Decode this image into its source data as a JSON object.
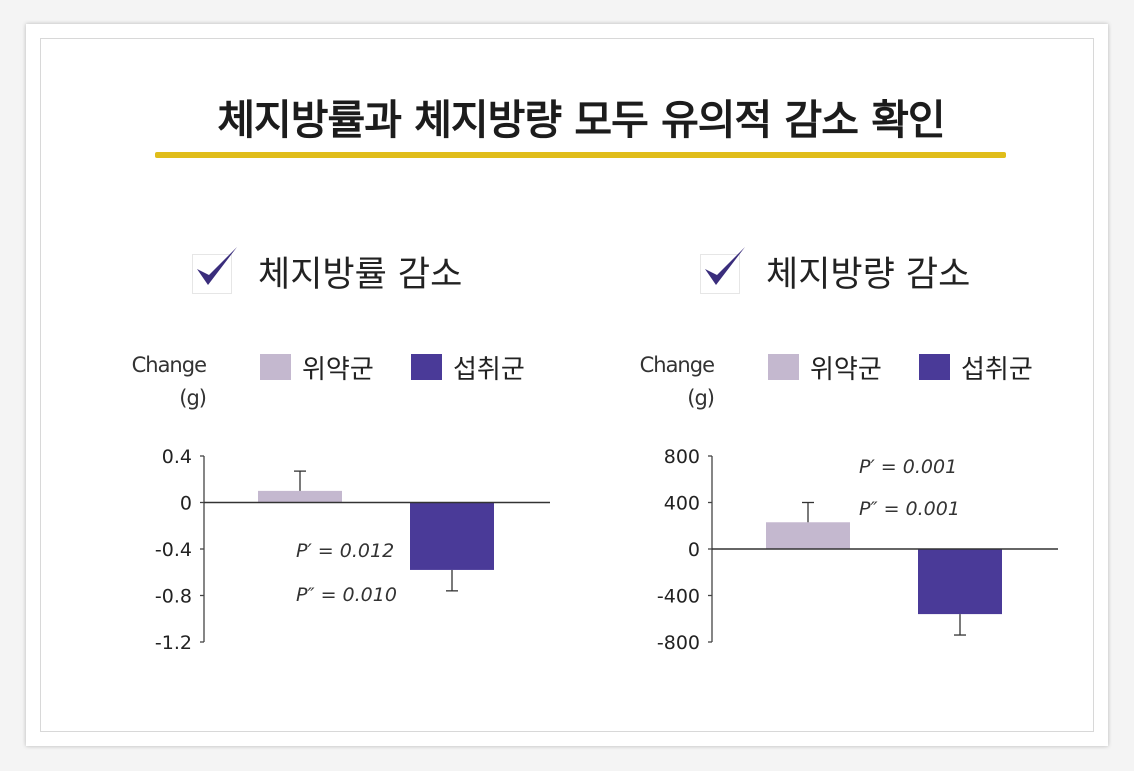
{
  "title": "체지방률과 체지방량 모두 유의적 감소 확인",
  "colors": {
    "placebo": "#c4b8cf",
    "intake": "#4a3a98",
    "underline": "#e0bd1a",
    "check": "#3a2d7c"
  },
  "chart_data": [
    {
      "type": "bar",
      "heading": "체지방률 감소",
      "ylabel": [
        "Change",
        "(g)"
      ],
      "legend": [
        "위약군",
        "섭취군"
      ],
      "categories": [
        "위약군",
        "섭취군"
      ],
      "values": [
        0.1,
        -0.58
      ],
      "error_upper": [
        0.27,
        null
      ],
      "error_lower": [
        null,
        -0.76
      ],
      "ylim": [
        -1.2,
        0.4
      ],
      "yticks": [
        0.4,
        0,
        -0.4,
        -0.8,
        -1.2
      ],
      "ytick_labels": [
        "0.4",
        "0",
        "-0.4",
        "-0.8",
        "-1.2"
      ],
      "annotations": [
        "P′ = 0.012",
        "P″ = 0.010"
      ]
    },
    {
      "type": "bar",
      "heading": "체지방량 감소",
      "ylabel": [
        "Change",
        "(g)"
      ],
      "legend": [
        "위약군",
        "섭취군"
      ],
      "categories": [
        "위약군",
        "섭취군"
      ],
      "values": [
        230,
        -560
      ],
      "error_upper": [
        400,
        null
      ],
      "error_lower": [
        null,
        -740
      ],
      "ylim": [
        -800,
        800
      ],
      "yticks": [
        800,
        400,
        0,
        -400,
        -800
      ],
      "ytick_labels": [
        "800",
        "400",
        "0",
        "-400",
        "-800"
      ],
      "annotations": [
        "P′ = 0.001",
        "P″ = 0.001"
      ]
    }
  ]
}
